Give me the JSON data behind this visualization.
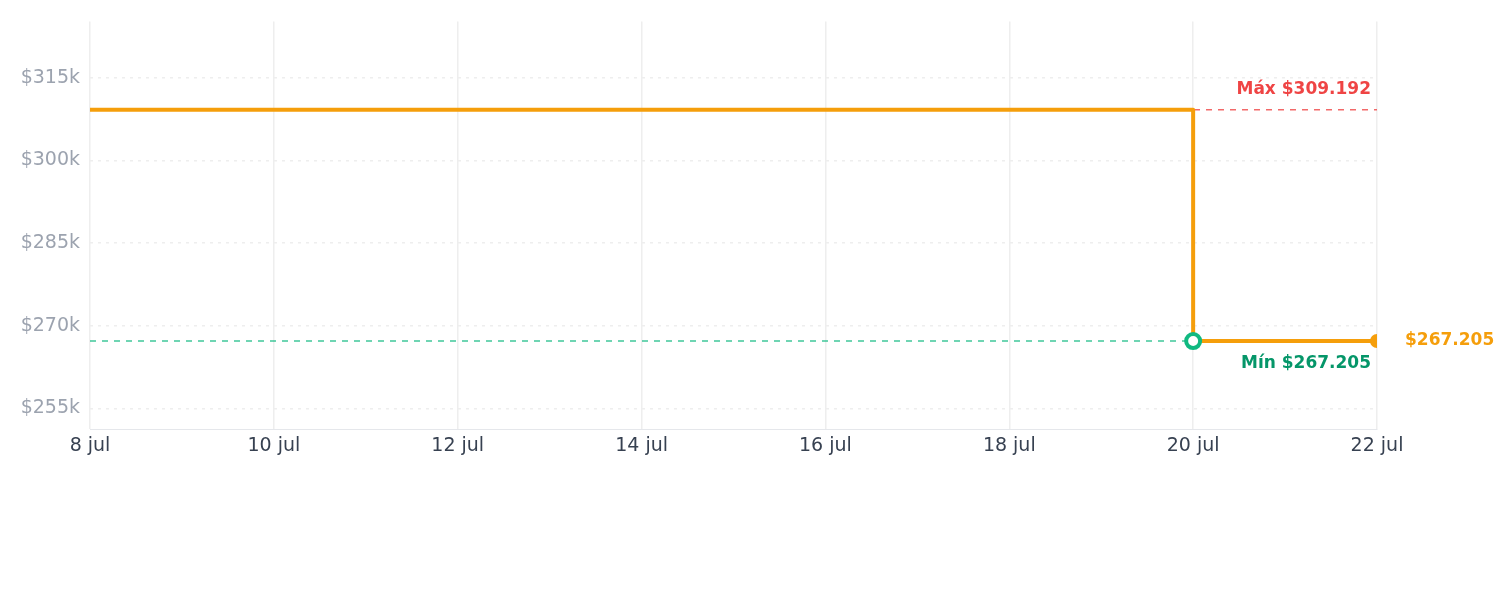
{
  "chart_data": {
    "type": "step",
    "x": [
      "--07-08",
      "--07-20",
      "--07-22"
    ],
    "series": [
      {
        "color": "#f59e0b",
        "values": [
          309192,
          267205,
          267205
        ]
      }
    ],
    "xlim": [
      "--07-08",
      "--07-22"
    ],
    "xticks": [
      {
        "value": "--07-08",
        "label": "8 jul"
      },
      {
        "value": "--07-10",
        "label": "10 jul"
      },
      {
        "value": "--07-12",
        "label": "12 jul"
      },
      {
        "value": "--07-14",
        "label": "14 jul"
      },
      {
        "value": "--07-16",
        "label": "16 jul"
      },
      {
        "value": "--07-18",
        "label": "18 jul"
      },
      {
        "value": "--07-20",
        "label": "20 jul"
      },
      {
        "value": "--07-22",
        "label": "22 jul"
      }
    ],
    "ylim": [
      251250,
      325200
    ],
    "yticks": [
      {
        "value": 255000,
        "label": "$255k"
      },
      {
        "value": 270000,
        "label": "$270k"
      },
      {
        "value": 285000,
        "label": "$285k"
      },
      {
        "value": 300000,
        "label": "$300k"
      },
      {
        "value": 315000,
        "label": "$315k"
      }
    ],
    "ref_lines": [
      {
        "axis": "y",
        "value": 309192,
        "label": "Máx $309.192",
        "color": "#ef4444",
        "line_style": "dashed"
      },
      {
        "axis": "y",
        "value": 267205,
        "label": "Mín $267.205",
        "color": "#10b981",
        "line_style": "dashed"
      }
    ],
    "annotations": [
      {
        "text": "$267.205",
        "x": "--07-22",
        "y": 267205
      }
    ],
    "grid": true,
    "legend": false,
    "marker": "circle",
    "line_style": "solid"
  }
}
